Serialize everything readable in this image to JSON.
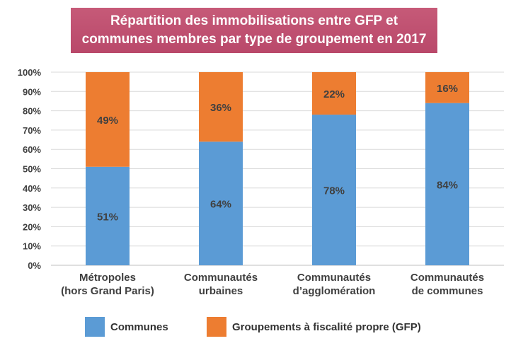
{
  "chart_data": {
    "type": "bar",
    "stacked": true,
    "title_lines": [
      "Répartition des immobilisations entre GFP et",
      "communes membres par type de groupement en 2017"
    ],
    "categories": [
      [
        "Métropoles",
        "(hors Grand Paris)"
      ],
      [
        "Communautés",
        "urbaines"
      ],
      [
        "Communautés",
        "d’agglomération"
      ],
      [
        "Communautés",
        "de communes"
      ]
    ],
    "series": [
      {
        "name": "Communes",
        "color": "#5b9bd5",
        "values": [
          51,
          64,
          78,
          84
        ],
        "labels": [
          "51%",
          "64%",
          "78%",
          "84%"
        ]
      },
      {
        "name": "Groupements à fiscalité propre (GFP)",
        "color": "#ed7d31",
        "values": [
          49,
          36,
          22,
          16
        ],
        "labels": [
          "49%",
          "36%",
          "22%",
          "16%"
        ]
      }
    ],
    "ylim": [
      0,
      100
    ],
    "yticks": [
      "0%",
      "10%",
      "20%",
      "30%",
      "40%",
      "50%",
      "60%",
      "70%",
      "80%",
      "90%",
      "100%"
    ],
    "grid": true,
    "legend_position": "bottom"
  }
}
